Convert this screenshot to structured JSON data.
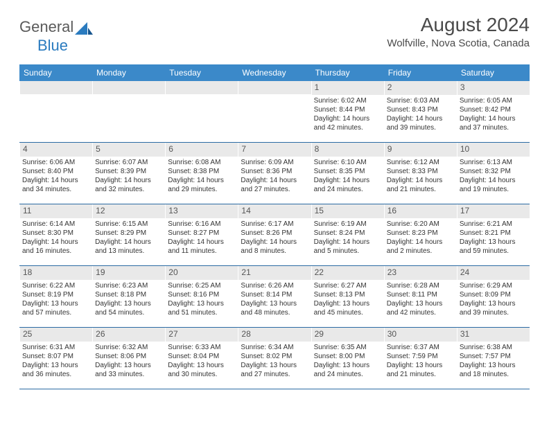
{
  "logo": {
    "part1": "General",
    "part2": "Blue"
  },
  "title": "August 2024",
  "location": "Wolfville, Nova Scotia, Canada",
  "colors": {
    "header_bg": "#3b89c9",
    "header_text": "#ffffff",
    "daynum_bg": "#e9e9e9",
    "row_border": "#2a6aa3",
    "text": "#333333"
  },
  "day_names": [
    "Sunday",
    "Monday",
    "Tuesday",
    "Wednesday",
    "Thursday",
    "Friday",
    "Saturday"
  ],
  "weeks": [
    [
      {
        "n": "",
        "sr": "",
        "ss": "",
        "dl": ""
      },
      {
        "n": "",
        "sr": "",
        "ss": "",
        "dl": ""
      },
      {
        "n": "",
        "sr": "",
        "ss": "",
        "dl": ""
      },
      {
        "n": "",
        "sr": "",
        "ss": "",
        "dl": ""
      },
      {
        "n": "1",
        "sr": "Sunrise: 6:02 AM",
        "ss": "Sunset: 8:44 PM",
        "dl": "Daylight: 14 hours and 42 minutes."
      },
      {
        "n": "2",
        "sr": "Sunrise: 6:03 AM",
        "ss": "Sunset: 8:43 PM",
        "dl": "Daylight: 14 hours and 39 minutes."
      },
      {
        "n": "3",
        "sr": "Sunrise: 6:05 AM",
        "ss": "Sunset: 8:42 PM",
        "dl": "Daylight: 14 hours and 37 minutes."
      }
    ],
    [
      {
        "n": "4",
        "sr": "Sunrise: 6:06 AM",
        "ss": "Sunset: 8:40 PM",
        "dl": "Daylight: 14 hours and 34 minutes."
      },
      {
        "n": "5",
        "sr": "Sunrise: 6:07 AM",
        "ss": "Sunset: 8:39 PM",
        "dl": "Daylight: 14 hours and 32 minutes."
      },
      {
        "n": "6",
        "sr": "Sunrise: 6:08 AM",
        "ss": "Sunset: 8:38 PM",
        "dl": "Daylight: 14 hours and 29 minutes."
      },
      {
        "n": "7",
        "sr": "Sunrise: 6:09 AM",
        "ss": "Sunset: 8:36 PM",
        "dl": "Daylight: 14 hours and 27 minutes."
      },
      {
        "n": "8",
        "sr": "Sunrise: 6:10 AM",
        "ss": "Sunset: 8:35 PM",
        "dl": "Daylight: 14 hours and 24 minutes."
      },
      {
        "n": "9",
        "sr": "Sunrise: 6:12 AM",
        "ss": "Sunset: 8:33 PM",
        "dl": "Daylight: 14 hours and 21 minutes."
      },
      {
        "n": "10",
        "sr": "Sunrise: 6:13 AM",
        "ss": "Sunset: 8:32 PM",
        "dl": "Daylight: 14 hours and 19 minutes."
      }
    ],
    [
      {
        "n": "11",
        "sr": "Sunrise: 6:14 AM",
        "ss": "Sunset: 8:30 PM",
        "dl": "Daylight: 14 hours and 16 minutes."
      },
      {
        "n": "12",
        "sr": "Sunrise: 6:15 AM",
        "ss": "Sunset: 8:29 PM",
        "dl": "Daylight: 14 hours and 13 minutes."
      },
      {
        "n": "13",
        "sr": "Sunrise: 6:16 AM",
        "ss": "Sunset: 8:27 PM",
        "dl": "Daylight: 14 hours and 11 minutes."
      },
      {
        "n": "14",
        "sr": "Sunrise: 6:17 AM",
        "ss": "Sunset: 8:26 PM",
        "dl": "Daylight: 14 hours and 8 minutes."
      },
      {
        "n": "15",
        "sr": "Sunrise: 6:19 AM",
        "ss": "Sunset: 8:24 PM",
        "dl": "Daylight: 14 hours and 5 minutes."
      },
      {
        "n": "16",
        "sr": "Sunrise: 6:20 AM",
        "ss": "Sunset: 8:23 PM",
        "dl": "Daylight: 14 hours and 2 minutes."
      },
      {
        "n": "17",
        "sr": "Sunrise: 6:21 AM",
        "ss": "Sunset: 8:21 PM",
        "dl": "Daylight: 13 hours and 59 minutes."
      }
    ],
    [
      {
        "n": "18",
        "sr": "Sunrise: 6:22 AM",
        "ss": "Sunset: 8:19 PM",
        "dl": "Daylight: 13 hours and 57 minutes."
      },
      {
        "n": "19",
        "sr": "Sunrise: 6:23 AM",
        "ss": "Sunset: 8:18 PM",
        "dl": "Daylight: 13 hours and 54 minutes."
      },
      {
        "n": "20",
        "sr": "Sunrise: 6:25 AM",
        "ss": "Sunset: 8:16 PM",
        "dl": "Daylight: 13 hours and 51 minutes."
      },
      {
        "n": "21",
        "sr": "Sunrise: 6:26 AM",
        "ss": "Sunset: 8:14 PM",
        "dl": "Daylight: 13 hours and 48 minutes."
      },
      {
        "n": "22",
        "sr": "Sunrise: 6:27 AM",
        "ss": "Sunset: 8:13 PM",
        "dl": "Daylight: 13 hours and 45 minutes."
      },
      {
        "n": "23",
        "sr": "Sunrise: 6:28 AM",
        "ss": "Sunset: 8:11 PM",
        "dl": "Daylight: 13 hours and 42 minutes."
      },
      {
        "n": "24",
        "sr": "Sunrise: 6:29 AM",
        "ss": "Sunset: 8:09 PM",
        "dl": "Daylight: 13 hours and 39 minutes."
      }
    ],
    [
      {
        "n": "25",
        "sr": "Sunrise: 6:31 AM",
        "ss": "Sunset: 8:07 PM",
        "dl": "Daylight: 13 hours and 36 minutes."
      },
      {
        "n": "26",
        "sr": "Sunrise: 6:32 AM",
        "ss": "Sunset: 8:06 PM",
        "dl": "Daylight: 13 hours and 33 minutes."
      },
      {
        "n": "27",
        "sr": "Sunrise: 6:33 AM",
        "ss": "Sunset: 8:04 PM",
        "dl": "Daylight: 13 hours and 30 minutes."
      },
      {
        "n": "28",
        "sr": "Sunrise: 6:34 AM",
        "ss": "Sunset: 8:02 PM",
        "dl": "Daylight: 13 hours and 27 minutes."
      },
      {
        "n": "29",
        "sr": "Sunrise: 6:35 AM",
        "ss": "Sunset: 8:00 PM",
        "dl": "Daylight: 13 hours and 24 minutes."
      },
      {
        "n": "30",
        "sr": "Sunrise: 6:37 AM",
        "ss": "Sunset: 7:59 PM",
        "dl": "Daylight: 13 hours and 21 minutes."
      },
      {
        "n": "31",
        "sr": "Sunrise: 6:38 AM",
        "ss": "Sunset: 7:57 PM",
        "dl": "Daylight: 13 hours and 18 minutes."
      }
    ]
  ]
}
